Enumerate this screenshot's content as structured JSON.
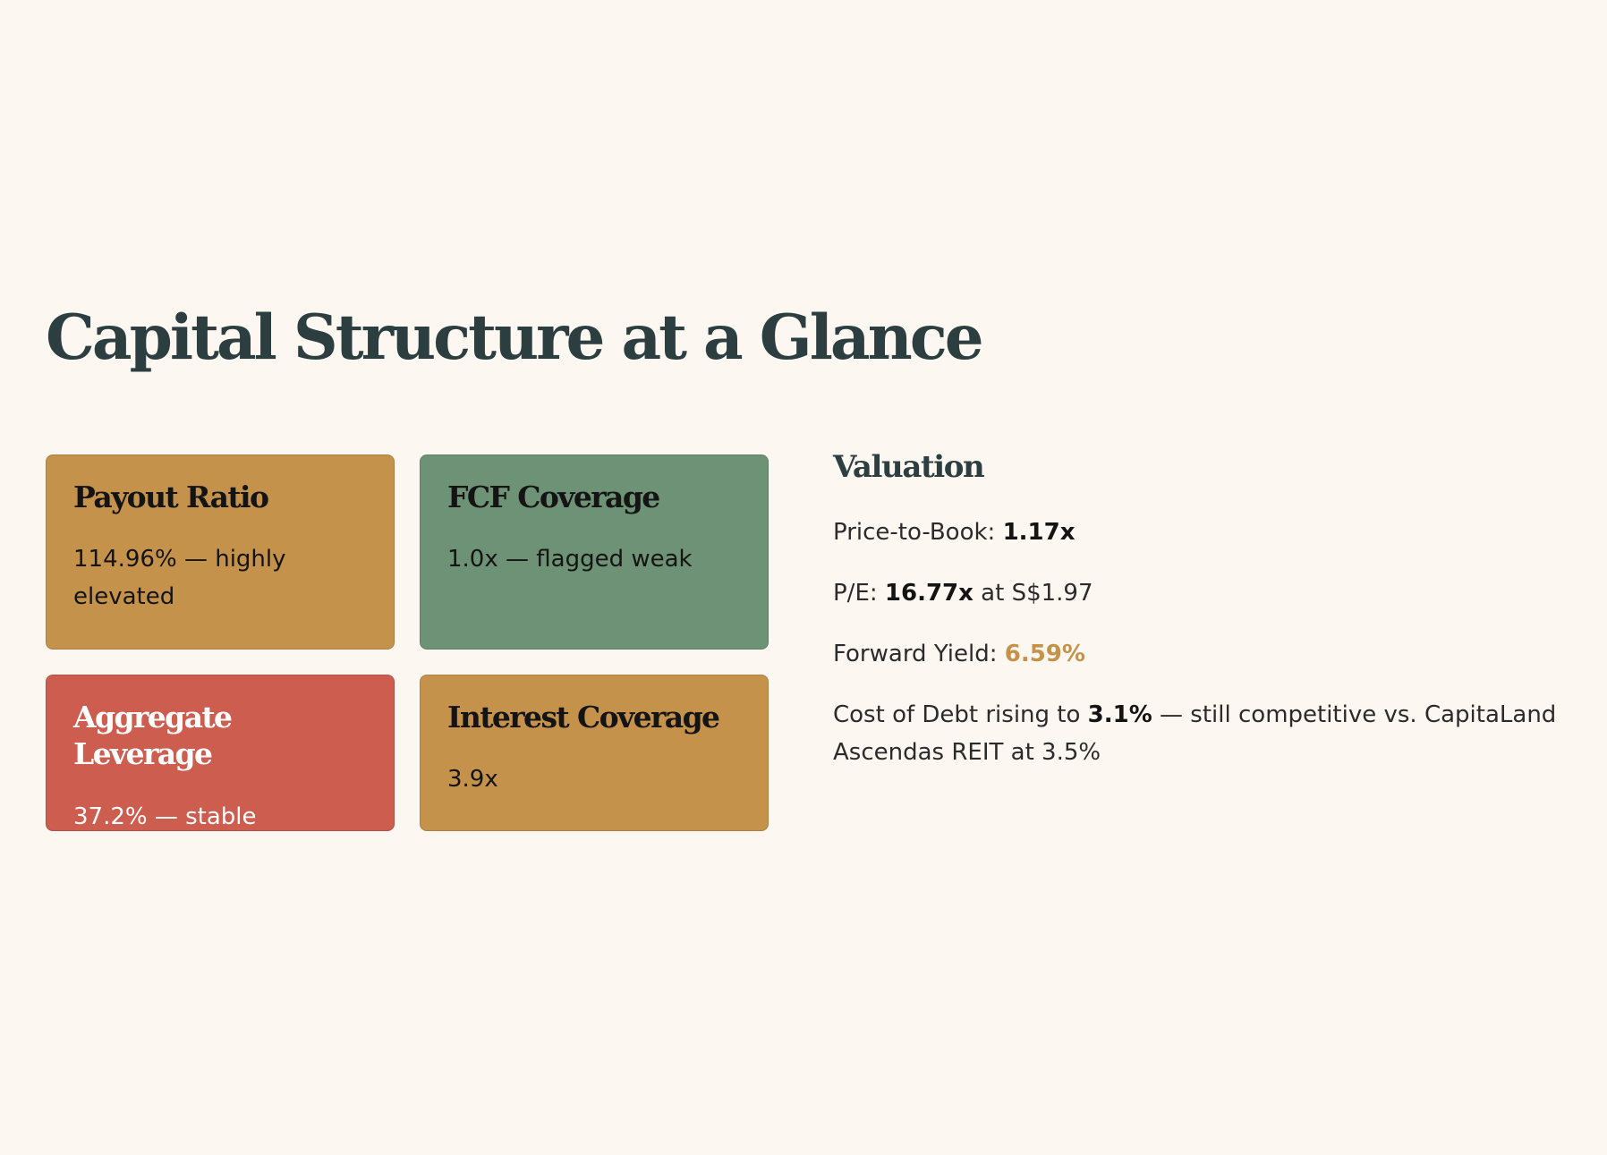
{
  "page": {
    "title": "Capital Structure at a Glance"
  },
  "cards": [
    {
      "title": "Payout Ratio",
      "value": "114.96% — highly elevated",
      "color": "#c4924a",
      "text_color": "#141414"
    },
    {
      "title": "FCF Coverage",
      "value": "1.0x — flagged weak",
      "color": "#6e9275",
      "text_color": "#141414"
    },
    {
      "title": "Aggregate Leverage",
      "value": "37.2% — stable",
      "color": "#cc5d4f",
      "text_color": "#ffffff"
    },
    {
      "title": "Interest Coverage",
      "value": "3.9x",
      "color": "#c4924a",
      "text_color": "#141414"
    }
  ],
  "valuation": {
    "heading": "Valuation",
    "price_to_book_label": "Price-to-Book: ",
    "price_to_book_value": "1.17x",
    "pe_label": "P/E: ",
    "pe_value": "16.77x",
    "pe_suffix": " at S$1.97",
    "forward_yield_label": "Forward Yield: ",
    "forward_yield_value": "6.59%",
    "cost_of_debt_label": "Cost of Debt rising to ",
    "cost_of_debt_value": "3.1%",
    "cost_of_debt_suffix": " — still competitive vs. CapitaLand Ascendas REIT at 3.5%"
  },
  "colors": {
    "background": "#fdf7f1",
    "heading": "#2c3e40",
    "accent_gold": "#c4924a",
    "accent_green": "#6e9275",
    "accent_red": "#cc5d4f"
  }
}
